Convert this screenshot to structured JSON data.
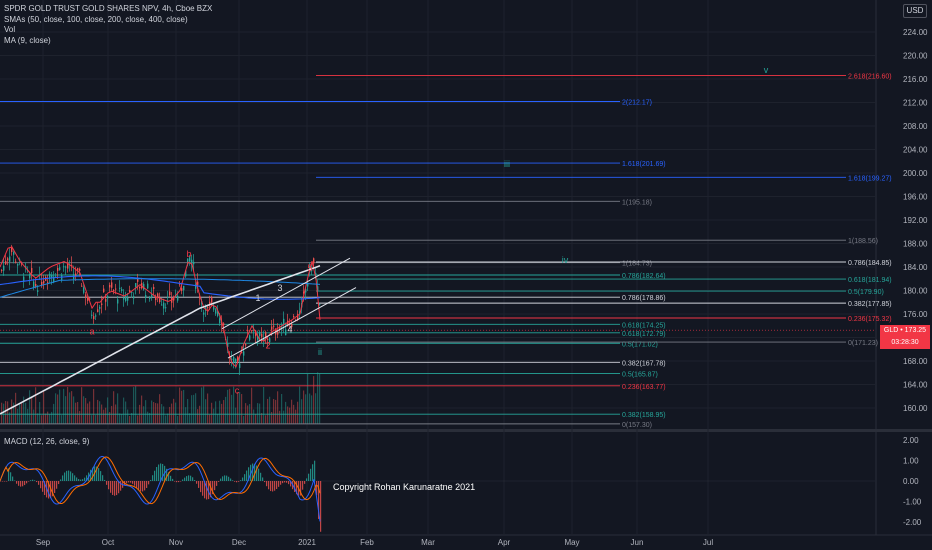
{
  "legend": {
    "symbol_line": "SPDR GOLD TRUST GOLD SHARES NPV, 4h, Cboe BZX",
    "sma_line": "SMAs (50, close, 100, close, 200, close, 400, close)",
    "vol_line": "Vol",
    "ma_line": "MA (9, close)"
  },
  "macd_legend": "MACD (12, 26, close, 9)",
  "currency_button": "USD",
  "copyright": "Copyright Rohan Karunaratne 2021",
  "last_price": {
    "symbol": "GLD",
    "value": "173.25",
    "countdown": "03:28:30"
  },
  "colors": {
    "background": "#131722",
    "red": "#f23645",
    "blue": "#2962ff",
    "green": "#26a69a",
    "white": "#d1d4dc"
  },
  "price_axis": {
    "min": 156,
    "max": 228,
    "ticks": [
      "224.00",
      "220.00",
      "216.00",
      "212.00",
      "208.00",
      "204.00",
      "200.00",
      "196.00",
      "192.00",
      "188.00",
      "184.00",
      "180.00",
      "176.00",
      "172.00",
      "168.00",
      "164.00",
      "160.00"
    ]
  },
  "macd_axis": {
    "min": -2.5,
    "max": 2.3,
    "ticks": [
      "2.00",
      "1.00",
      "0.00",
      "-1.00",
      "-2.00"
    ]
  },
  "time_axis": [
    "Sep",
    "Oct",
    "Nov",
    "Dec",
    "2021",
    "Feb",
    "Mar",
    "Apr",
    "May",
    "Jun",
    "Jul"
  ],
  "fib_levels": [
    {
      "label": "2.618(216.60)",
      "price": 216.6,
      "color": "#f23645",
      "label_price": 216.6
    },
    {
      "label": "2(212.17)",
      "price": 212.17,
      "color": "#2962ff",
      "label_price": 212.17
    },
    {
      "label": "1.618(201.69)",
      "price": 201.69,
      "color": "#2962ff",
      "label_price": 201.69
    },
    {
      "label": "1.618(199.27)",
      "price": 199.27,
      "color": "#2962ff",
      "label_price": 199.27
    },
    {
      "label": "1(195.18)",
      "price": 195.18,
      "color": "#787b86",
      "label_price": 195.18
    },
    {
      "label": "1(188.56)",
      "price": 188.56,
      "color": "#787b86",
      "label_price": 188.56
    },
    {
      "label": "1(184.73)",
      "price": 184.73,
      "color": "#787b86",
      "label_price": 184.73
    },
    {
      "label": "0.786(184.85)",
      "price": 184.85,
      "color": "#d1d4dc",
      "label_price": 184.85
    },
    {
      "label": "0.786(182.64)",
      "price": 182.64,
      "color": "#26a69a",
      "label_price": 182.64
    },
    {
      "label": "0.618(181.94)",
      "price": 181.94,
      "color": "#26a69a",
      "label_price": 181.94
    },
    {
      "label": "0.5(179.90)",
      "price": 179.9,
      "color": "#26a69a",
      "label_price": 179.9
    },
    {
      "label": "0.786(178.86)",
      "price": 178.86,
      "color": "#d1d4dc",
      "label_price": 178.86
    },
    {
      "label": "0.382(177.85)",
      "price": 177.85,
      "color": "#d1d4dc",
      "label_price": 177.85
    },
    {
      "label": "0.236(175.32)",
      "price": 175.32,
      "color": "#f23645",
      "label_price": 175.32
    },
    {
      "label": "0.618(174.25)",
      "price": 174.25,
      "color": "#26a69a",
      "label_price": 174.25
    },
    {
      "label": "0.618(172.79)",
      "price": 172.79,
      "color": "#26a69a",
      "label_price": 172.79
    },
    {
      "label": "0.5(171.02)",
      "price": 171.02,
      "color": "#26a69a",
      "label_price": 171.02
    },
    {
      "label": "0(171.23)",
      "price": 171.23,
      "color": "#787b86",
      "label_price": 171.23
    },
    {
      "label": "0.382(167.78)",
      "price": 167.78,
      "color": "#d1d4dc",
      "label_price": 167.78
    },
    {
      "label": "0.5(165.87)",
      "price": 165.87,
      "color": "#26a69a",
      "label_price": 165.87
    },
    {
      "label": "0.236(163.77)",
      "price": 163.77,
      "color": "#f23645",
      "label_price": 163.77
    },
    {
      "label": "0.382(158.95)",
      "price": 158.95,
      "color": "#26a69a",
      "label_price": 158.95
    },
    {
      "label": "0(157.30)",
      "price": 157.3,
      "color": "#787b86",
      "label_price": 157.3
    }
  ],
  "wave_labels": [
    {
      "text": "v",
      "price": 217.5,
      "color": "#26a69a"
    },
    {
      "text": "iii",
      "price": 201.5,
      "color": "#26a69a"
    },
    {
      "text": "iv",
      "price": 185.2,
      "color": "#26a69a"
    },
    {
      "text": "ii",
      "price": 169.5,
      "color": "#26a69a"
    },
    {
      "text": "b",
      "price": 186.2,
      "color": "#f23645"
    },
    {
      "text": "a",
      "price": 173.0,
      "color": "#f23645"
    },
    {
      "text": "c",
      "price": 163.0,
      "color": "#f23645"
    },
    {
      "text": "5",
      "price": 183.8,
      "color": "#f23645"
    },
    {
      "text": "2",
      "price": 170.6,
      "color": "#f23645"
    },
    {
      "text": "1",
      "price": 178.7,
      "color": "#d1d4dc"
    },
    {
      "text": "3",
      "price": 180.4,
      "color": "#d1d4dc"
    },
    {
      "text": "4",
      "price": 173.4,
      "color": "#d1d4dc"
    }
  ]
}
